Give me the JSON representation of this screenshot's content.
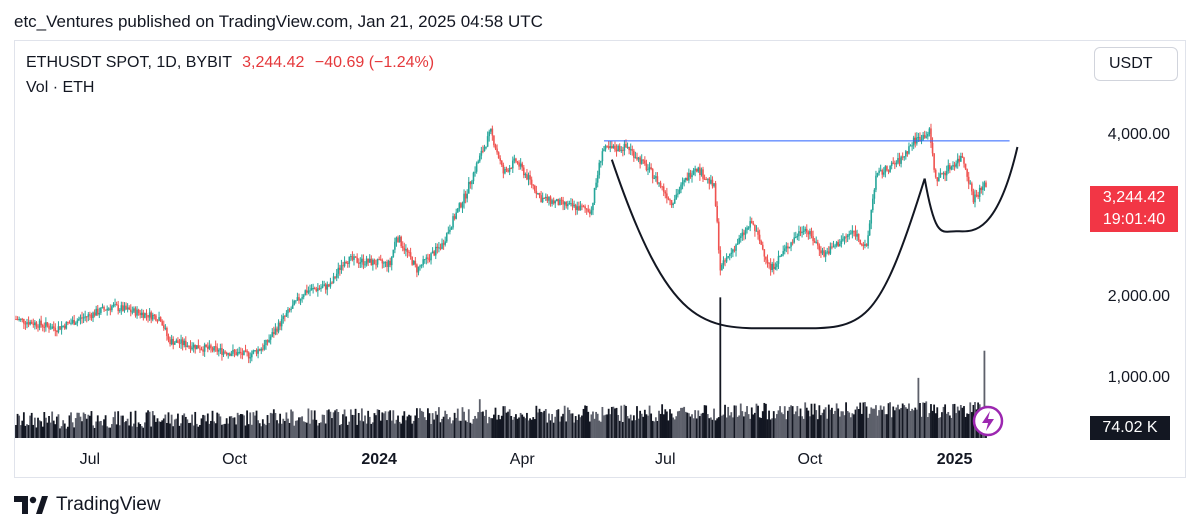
{
  "header": {
    "published": "etc_Ventures published on TradingView.com, Jan 21, 2025 04:58 UTC"
  },
  "legend": {
    "symbol": "ETHUSDT SPOT, 1D, BYBIT",
    "price": "3,244.42",
    "change": "−40.69 (−1.24%)",
    "volume_label": "Vol · ETH"
  },
  "currency_button": "USDT",
  "price_tag": {
    "price": "3,244.42",
    "countdown": "19:01:40"
  },
  "volume_tag": "74.02 K",
  "footer": {
    "brand": "TradingView"
  },
  "colors": {
    "up": "#26a69a",
    "down": "#ef5350",
    "volume": "#131722",
    "trendline": "#2962ff",
    "pattern": "#131722",
    "price_tag": "#f23645"
  },
  "chart_data": {
    "type": "candlestick",
    "y_axis": {
      "ticks": [
        "4,000.00",
        "2,000.00",
        "1,000.00"
      ],
      "tick_values": [
        4000,
        2000,
        1000
      ],
      "scale": "log",
      "range": [
        1500,
        4500
      ]
    },
    "x_axis": {
      "ticks": [
        {
          "label": "Jul",
          "date": "2023-07-01",
          "bold": false
        },
        {
          "label": "Oct",
          "date": "2023-10-01",
          "bold": false
        },
        {
          "label": "2024",
          "date": "2024-01-01",
          "bold": true
        },
        {
          "label": "Apr",
          "date": "2024-04-01",
          "bold": false
        },
        {
          "label": "Jul",
          "date": "2024-07-01",
          "bold": false
        },
        {
          "label": "Oct",
          "date": "2024-10-01",
          "bold": false
        },
        {
          "label": "2025",
          "date": "2025-01-01",
          "bold": true
        }
      ],
      "range": [
        "2023-05-15",
        "2025-01-21"
      ]
    },
    "price_keypoints": [
      [
        "2023-05-15",
        1820
      ],
      [
        "2023-06-10",
        1750
      ],
      [
        "2023-07-15",
        1920
      ],
      [
        "2023-08-15",
        1830
      ],
      [
        "2023-08-20",
        1660
      ],
      [
        "2023-09-15",
        1600
      ],
      [
        "2023-10-10",
        1560
      ],
      [
        "2023-10-20",
        1620
      ],
      [
        "2023-11-01",
        1820
      ],
      [
        "2023-11-15",
        2050
      ],
      [
        "2023-12-01",
        2100
      ],
      [
        "2023-12-10",
        2350
      ],
      [
        "2024-01-08",
        2300
      ],
      [
        "2024-01-12",
        2600
      ],
      [
        "2024-01-25",
        2250
      ],
      [
        "2024-02-10",
        2500
      ],
      [
        "2024-02-25",
        3100
      ],
      [
        "2024-03-12",
        4050
      ],
      [
        "2024-03-20",
        3400
      ],
      [
        "2024-03-28",
        3580
      ],
      [
        "2024-04-13",
        3050
      ],
      [
        "2024-05-01",
        2950
      ],
      [
        "2024-05-15",
        2900
      ],
      [
        "2024-05-22",
        3750
      ],
      [
        "2024-06-07",
        3800
      ],
      [
        "2024-06-24",
        3350
      ],
      [
        "2024-07-05",
        3000
      ],
      [
        "2024-07-20",
        3500
      ],
      [
        "2024-08-01",
        3200
      ],
      [
        "2024-08-05",
        2250
      ],
      [
        "2024-08-25",
        2750
      ],
      [
        "2024-09-06",
        2250
      ],
      [
        "2024-09-27",
        2700
      ],
      [
        "2024-10-10",
        2400
      ],
      [
        "2024-10-29",
        2650
      ],
      [
        "2024-11-06",
        2450
      ],
      [
        "2024-11-12",
        3350
      ],
      [
        "2024-11-28",
        3600
      ],
      [
        "2024-12-06",
        3900
      ],
      [
        "2024-12-16",
        4050
      ],
      [
        "2024-12-20",
        3300
      ],
      [
        "2025-01-06",
        3650
      ],
      [
        "2025-01-13",
        3050
      ],
      [
        "2025-01-21",
        3244.42
      ]
    ],
    "volume_spikes": [
      [
        "2024-03-05",
        400
      ],
      [
        "2024-08-05",
        1450
      ],
      [
        "2024-12-09",
        620
      ],
      [
        "2025-01-20",
        900
      ]
    ],
    "annotations": {
      "resistance_line": {
        "from": "2024-05-23",
        "to": "2025-02-05",
        "price": 3900
      },
      "cup": {
        "from": "2024-05-28",
        "low_date": "2024-09-15",
        "low_price": 1750,
        "to": "2024-12-13",
        "end_price": 3320
      },
      "handle": {
        "from": "2024-12-13",
        "low_date": "2025-01-02",
        "low_price": 2650,
        "to": "2025-02-10",
        "end_price": 3800
      }
    }
  }
}
